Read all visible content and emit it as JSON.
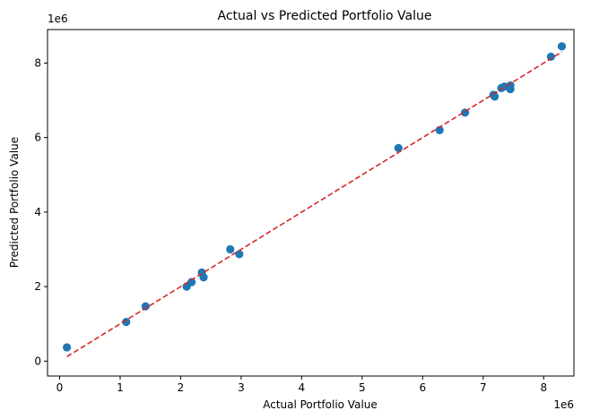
{
  "chart_data": {
    "type": "scatter",
    "title": "Actual vs Predicted Portfolio Value",
    "xlabel": "Actual Portfolio Value",
    "ylabel": "Predicted Portfolio Value",
    "x_offset_label": "1e6",
    "y_offset_label": "1e6",
    "xlim": [
      -0.2,
      8.5
    ],
    "ylim": [
      -0.4,
      8.9
    ],
    "xticks": [
      0,
      1,
      2,
      3,
      4,
      5,
      6,
      7,
      8
    ],
    "xtick_labels": [
      "0",
      "1",
      "2",
      "3",
      "4",
      "5",
      "6",
      "7",
      "8"
    ],
    "yticks": [
      0,
      2,
      4,
      6,
      8
    ],
    "ytick_labels": [
      "0",
      "2",
      "4",
      "6",
      "8"
    ],
    "grid": false,
    "scale": "1e6",
    "series": [
      {
        "color": "#1f77b4",
        "points": [
          [
            0.12,
            0.37
          ],
          [
            1.1,
            1.05
          ],
          [
            1.42,
            1.47
          ],
          [
            2.1,
            2.0
          ],
          [
            2.18,
            2.12
          ],
          [
            2.35,
            2.38
          ],
          [
            2.38,
            2.25
          ],
          [
            2.82,
            3.0
          ],
          [
            2.97,
            2.87
          ],
          [
            5.6,
            5.72
          ],
          [
            6.28,
            6.2
          ],
          [
            6.7,
            6.67
          ],
          [
            7.17,
            7.15
          ],
          [
            7.19,
            7.1
          ],
          [
            7.3,
            7.33
          ],
          [
            7.35,
            7.37
          ],
          [
            7.45,
            7.3
          ],
          [
            7.45,
            7.4
          ],
          [
            8.12,
            8.17
          ],
          [
            8.3,
            8.45
          ]
        ]
      }
    ],
    "reference_line": {
      "color": "#d62728",
      "style": "dashed",
      "from": [
        0.12,
        0.12
      ],
      "to": [
        8.3,
        8.3
      ]
    }
  }
}
